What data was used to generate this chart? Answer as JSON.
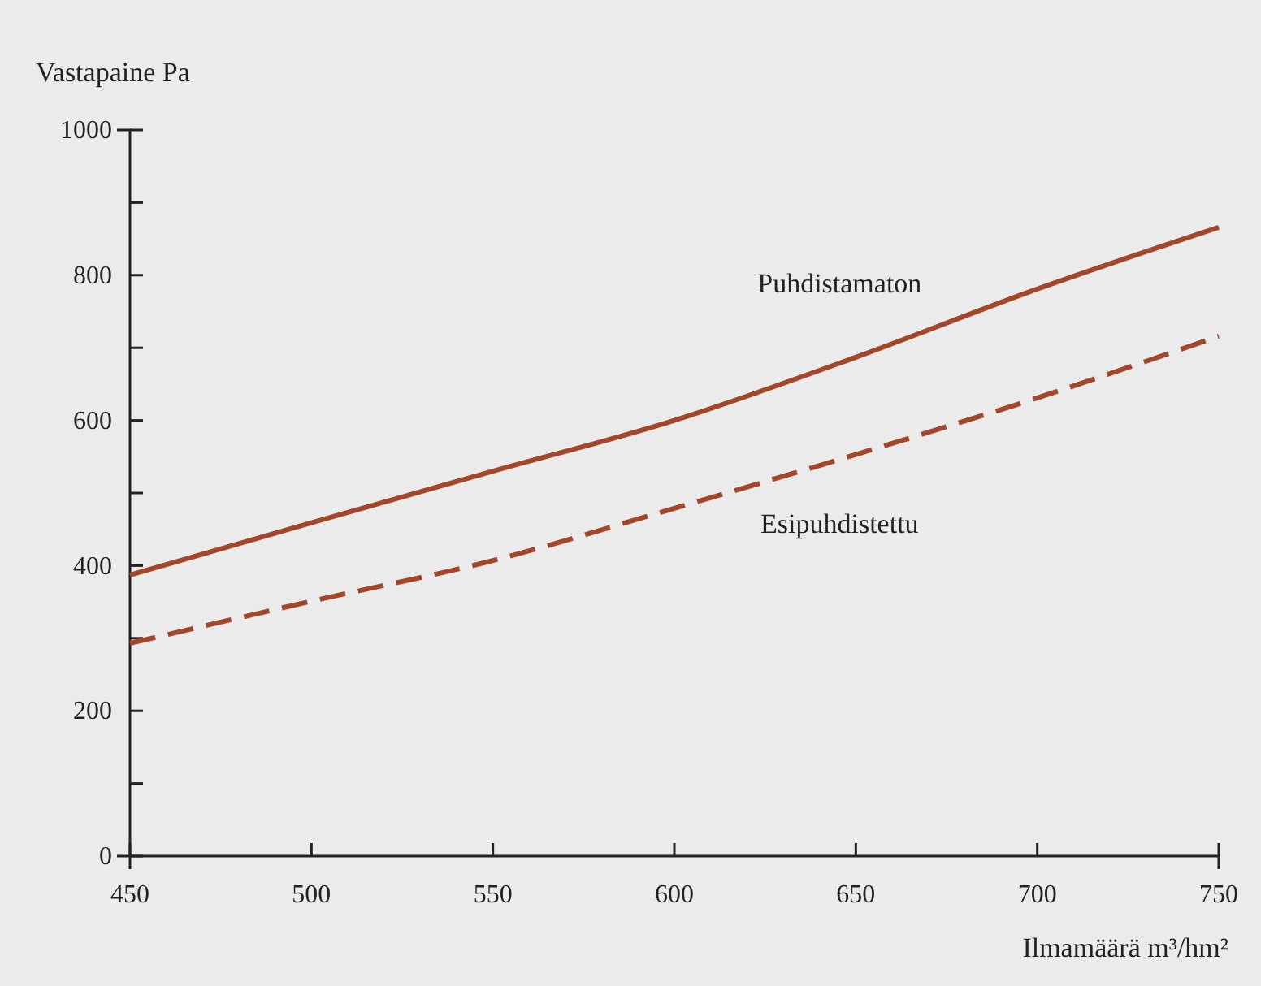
{
  "chart_data": {
    "type": "line",
    "xlabel": "Ilmamäärä m³/hm²",
    "ylabel": "Vastapaine Pa",
    "x": [
      450,
      500,
      550,
      600,
      650,
      700,
      750
    ],
    "series": [
      {
        "name": "Puhdistamaton",
        "color": "#a2472b",
        "line_style": "solid",
        "values": [
          387,
          459,
          530,
          600,
          687,
          781,
          866
        ]
      },
      {
        "name": "Esipuhdistettu",
        "color": "#a2472b",
        "line_style": "dashed",
        "values": [
          293,
          351,
          407,
          479,
          553,
          631,
          716
        ]
      }
    ],
    "xlim": [
      450,
      750
    ],
    "xticks": [
      450,
      500,
      550,
      600,
      650,
      700,
      750
    ],
    "ylim": [
      0,
      1000
    ],
    "yticks": [
      0,
      {
        "value": 100,
        "label": null
      },
      200,
      {
        "value": 300,
        "label": null
      },
      400,
      {
        "value": 500,
        "label": null
      },
      600,
      {
        "value": 700,
        "label": null
      },
      800,
      {
        "value": 900,
        "label": null
      },
      1000
    ],
    "grid": false,
    "legend": false,
    "marker": "none"
  }
}
